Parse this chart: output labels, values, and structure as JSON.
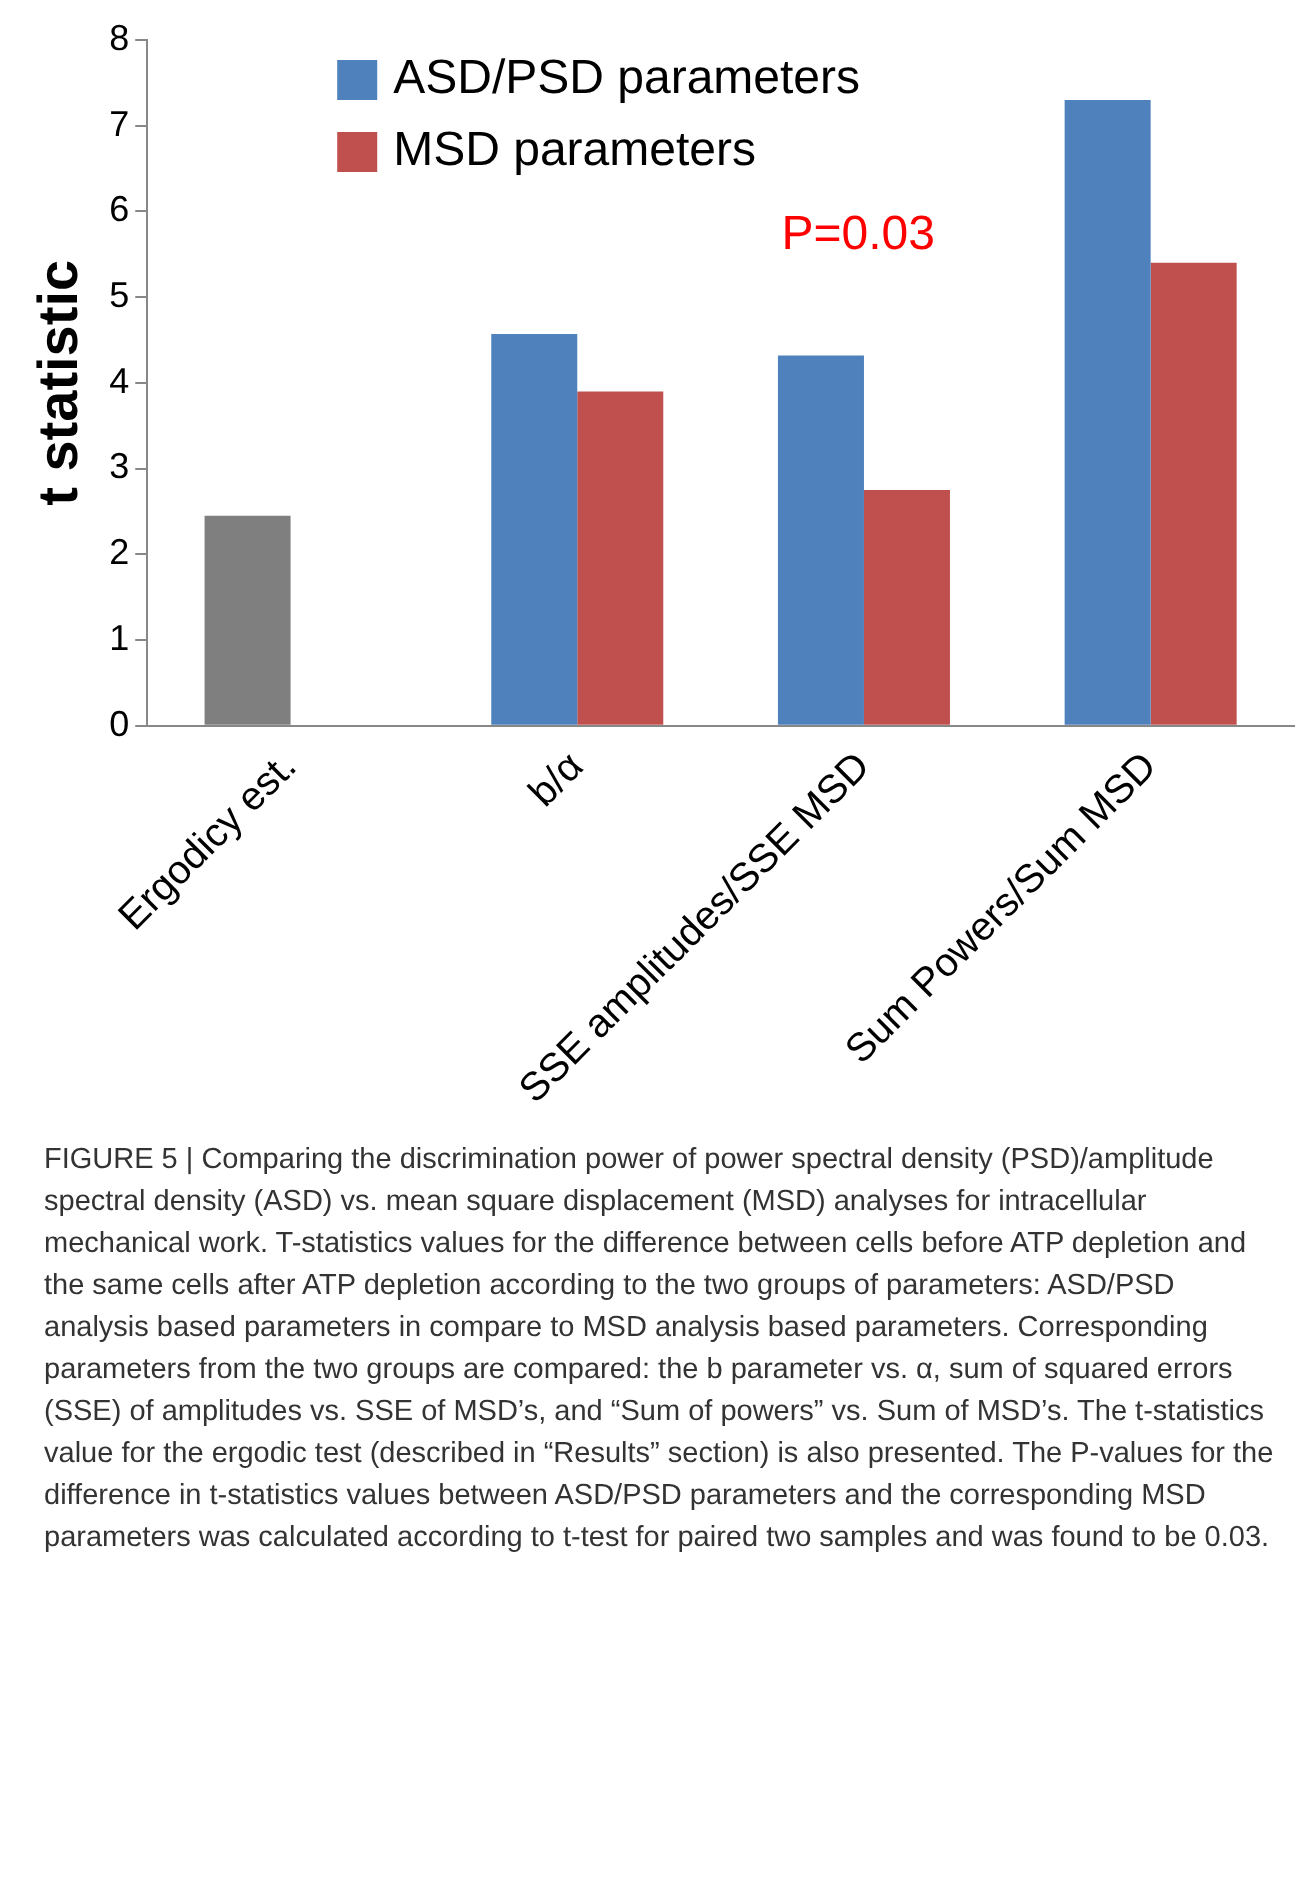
{
  "chart_data": {
    "type": "bar",
    "ylabel": "t statistic",
    "categories": [
      "Ergodicy est.",
      "b/α",
      "SSE amplitudes/SSE MSD",
      "Sum Powers/Sum MSD"
    ],
    "series": [
      {
        "name": "ASD/PSD parameters",
        "color": "#4f81bd",
        "colors": [
          "#7f7f7f",
          "#4f81bd",
          "#4f81bd",
          "#4f81bd"
        ],
        "values": [
          2.45,
          4.57,
          4.32,
          7.3
        ]
      },
      {
        "name": "MSD parameters",
        "color": "#c0504d",
        "values": [
          null,
          3.9,
          2.75,
          5.4
        ]
      }
    ],
    "ylim": [
      0,
      8
    ],
    "yticks": [
      0,
      1,
      2,
      3,
      4,
      5,
      6,
      7,
      8
    ],
    "grid": false,
    "legend": "top left",
    "annotations": [
      "P=0.03",
      "FIGURE 5 | Comparing the discrimination power of power spectral density (PSD)/amplitude spectral density (ASD) vs. mean square displacement (MSD) analyses for intracellular mechanical work. T-statistics values for the difference between cells before ATP depletion and the same cells after ATP depletion according to the two groups of parameters: ASD/PSD analysis based parameters in compare to MSD analysis based parameters. Corresponding parameters from the two groups are compared: the b parameter vs. α, sum of squared errors (SSE) of amplitudes vs. SSE of MSD’s, and “Sum of powers” vs. Sum of MSD’s. The t-statistics value for the ergodic test (described in “Results” section) is also presented. The P-values for the difference in t-statistics values between ASD/PSD parameters and the corresponding MSD parameters was calculated according to t-test for paired two samples and was found to be 0.03."
    ]
  }
}
